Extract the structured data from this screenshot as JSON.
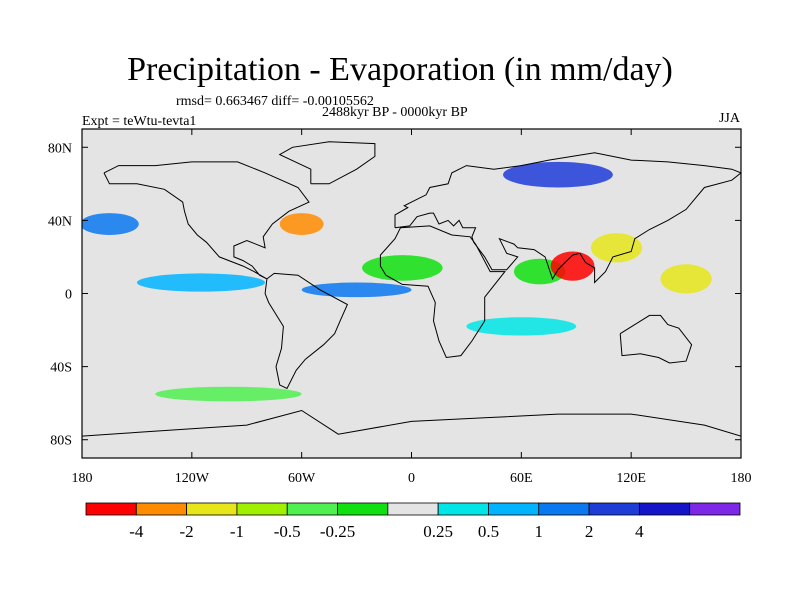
{
  "title": "Precipitation - Evaporation (in mm/day)",
  "stats_line": "rmsd= 0.663467 diff= -0.00105562",
  "period_line": "2488kyr BP - 0000kyr BP",
  "experiment_label": "Expt = teWtu-tevta1",
  "season": "JJA",
  "map": {
    "projection": "cylindrical equidistant",
    "lon_range": [
      -180,
      180
    ],
    "lat_range": [
      -90,
      90
    ],
    "background_fill": "#e4e4e4",
    "coastline_color": "#000000"
  },
  "axes": {
    "x_ticks": [
      {
        "value": -180,
        "label": "180"
      },
      {
        "value": -120,
        "label": "120W"
      },
      {
        "value": -60,
        "label": "60W"
      },
      {
        "value": 0,
        "label": "0"
      },
      {
        "value": 60,
        "label": "60E"
      },
      {
        "value": 120,
        "label": "120E"
      },
      {
        "value": 180,
        "label": "180"
      }
    ],
    "y_ticks": [
      {
        "value": 80,
        "label": "80N"
      },
      {
        "value": 40,
        "label": "40N"
      },
      {
        "value": 0,
        "label": "0"
      },
      {
        "value": -40,
        "label": "40S"
      },
      {
        "value": -80,
        "label": "80S"
      }
    ]
  },
  "colorbar": {
    "colors": [
      "#ff0000",
      "#ff8c00",
      "#e6e61a",
      "#a0f000",
      "#50f050",
      "#10e010",
      "#e4e4e4",
      "#00e6e6",
      "#00b4ff",
      "#0a78f0",
      "#1e3cd8",
      "#1414c8",
      "#7d28e6"
    ],
    "labels": [
      "-4",
      "-2",
      "-1",
      "-0.5",
      "-0.25",
      "0.25",
      "0.5",
      "1",
      "2",
      "4"
    ]
  },
  "field_patches": [
    {
      "region": "Sahel / West Africa",
      "lon": -5,
      "lat": 14,
      "rx": 22,
      "ry": 7,
      "level": "-0.5",
      "color": "#10e010"
    },
    {
      "region": "Arabian Sea",
      "lon": 70,
      "lat": 12,
      "rx": 14,
      "ry": 7,
      "level": "-0.5",
      "color": "#10e010"
    },
    {
      "region": "Bay of Bengal",
      "lon": 88,
      "lat": 15,
      "rx": 12,
      "ry": 8,
      "level": "-4",
      "color": "#ff0000"
    },
    {
      "region": "South China",
      "lon": 112,
      "lat": 25,
      "rx": 14,
      "ry": 8,
      "level": "-1",
      "color": "#e6e61a"
    },
    {
      "region": "Equatorial Atlantic",
      "lon": -30,
      "lat": 2,
      "rx": 30,
      "ry": 4,
      "level": "1",
      "color": "#0a78f0"
    },
    {
      "region": "Equatorial East Pacific",
      "lon": -115,
      "lat": 6,
      "rx": 35,
      "ry": 5,
      "level": "0.5",
      "color": "#00b4ff"
    },
    {
      "region": "North Pacific",
      "lon": -165,
      "lat": 38,
      "rx": 16,
      "ry": 6,
      "level": "1",
      "color": "#0a78f0"
    },
    {
      "region": "Western Pacific",
      "lon": 150,
      "lat": 8,
      "rx": 14,
      "ry": 8,
      "level": "-1",
      "color": "#e6e61a"
    },
    {
      "region": "Gulf Stream",
      "lon": -60,
      "lat": 38,
      "rx": 12,
      "ry": 6,
      "level": "-2",
      "color": "#ff8c00"
    },
    {
      "region": "Siberia",
      "lon": 80,
      "lat": 65,
      "rx": 30,
      "ry": 7,
      "level": "2",
      "color": "#1e3cd8"
    },
    {
      "region": "Southern Ocean",
      "lon": -100,
      "lat": -55,
      "rx": 40,
      "ry": 4,
      "level": "-0.25",
      "color": "#50f050"
    },
    {
      "region": "Indian Ocean south",
      "lon": 60,
      "lat": -18,
      "rx": 30,
      "ry": 5,
      "level": "0.25",
      "color": "#00e6e6"
    }
  ]
}
